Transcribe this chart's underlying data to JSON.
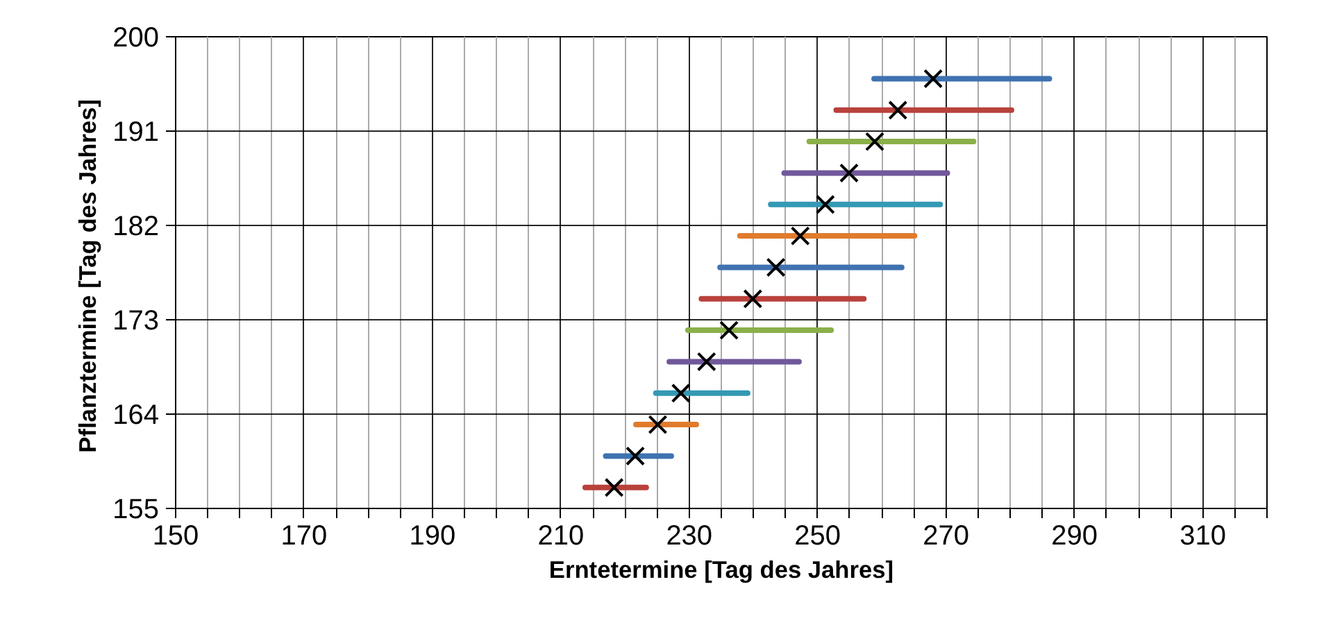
{
  "chart_data": {
    "type": "line",
    "xlabel": "Erntetermine [Tag des Jahres]",
    "ylabel": "Pflanztermine  [Tag des Jahres]",
    "xlim": [
      150,
      320
    ],
    "ylim": [
      155,
      200
    ],
    "xticks": [
      150,
      {
        "value": 155,
        "label": null
      },
      {
        "value": 160,
        "label": null
      },
      {
        "value": 165,
        "label": null
      },
      170,
      {
        "value": 175,
        "label": null
      },
      {
        "value": 180,
        "label": null
      },
      {
        "value": 185,
        "label": null
      },
      190,
      {
        "value": 195,
        "label": null
      },
      {
        "value": 200,
        "label": null
      },
      {
        "value": 205,
        "label": null
      },
      210,
      {
        "value": 215,
        "label": null
      },
      {
        "value": 220,
        "label": null
      },
      {
        "value": 225,
        "label": null
      },
      230,
      {
        "value": 235,
        "label": null
      },
      {
        "value": 240,
        "label": null
      },
      {
        "value": 245,
        "label": null
      },
      250,
      {
        "value": 255,
        "label": null
      },
      {
        "value": 260,
        "label": null
      },
      {
        "value": 265,
        "label": null
      },
      270,
      {
        "value": 275,
        "label": null
      },
      {
        "value": 280,
        "label": null
      },
      {
        "value": 285,
        "label": null
      },
      290,
      {
        "value": 295,
        "label": null
      },
      {
        "value": 300,
        "label": null
      },
      {
        "value": 305,
        "label": null
      },
      310,
      {
        "value": 315,
        "label": null
      },
      {
        "value": 320,
        "label": null
      }
    ],
    "yticks": [
      155,
      164,
      173,
      182,
      191,
      200
    ],
    "grid": true,
    "line_style": "solid",
    "series": [
      {
        "color": "#b9413c",
        "x": [
          213.8,
          223.3
        ],
        "values": [
          157,
          157
        ]
      },
      {
        "color": "#3f72b0",
        "x": [
          217,
          227.2
        ],
        "values": [
          160,
          160
        ]
      },
      {
        "color": "#e07b2c",
        "x": [
          221.7,
          231.1
        ],
        "values": [
          163,
          163
        ]
      },
      {
        "color": "#3399b4",
        "x": [
          224.8,
          239.1
        ],
        "values": [
          166,
          166
        ]
      },
      {
        "color": "#71589b",
        "x": [
          226.9,
          247.1
        ],
        "values": [
          169,
          169
        ]
      },
      {
        "color": "#8ab04a",
        "x": [
          229.8,
          252.1
        ],
        "values": [
          172,
          172
        ]
      },
      {
        "color": "#b9413c",
        "x": [
          231.9,
          257.2
        ],
        "values": [
          175,
          175
        ]
      },
      {
        "color": "#3f72b0",
        "x": [
          234.8,
          263.1
        ],
        "values": [
          178,
          178
        ]
      },
      {
        "color": "#e07b2c",
        "x": [
          237.9,
          265.1
        ],
        "values": [
          181,
          181
        ]
      },
      {
        "color": "#3399b4",
        "x": [
          242.7,
          269.1
        ],
        "values": [
          184,
          184
        ]
      },
      {
        "color": "#71589b",
        "x": [
          244.8,
          270.2
        ],
        "values": [
          187,
          187
        ]
      },
      {
        "color": "#8ab04a",
        "x": [
          248.7,
          274.3
        ],
        "values": [
          190,
          190
        ]
      },
      {
        "color": "#b9413c",
        "x": [
          252.9,
          280.2
        ],
        "values": [
          193,
          193
        ]
      },
      {
        "color": "#3f72b0",
        "x": [
          258.8,
          286.1
        ],
        "values": [
          196,
          196
        ]
      },
      {
        "type": "scatter",
        "marker": "cross",
        "color": "#000000",
        "x": [
          218.3,
          221.6,
          225.1,
          228.7,
          232.7,
          236.2,
          239.9,
          243.5,
          247.3,
          251.2,
          254.9,
          258.9,
          262.5,
          268.0
        ],
        "values": [
          157,
          160,
          163,
          166,
          169,
          172,
          175,
          178,
          181,
          184,
          187,
          190,
          193,
          196
        ]
      }
    ]
  }
}
